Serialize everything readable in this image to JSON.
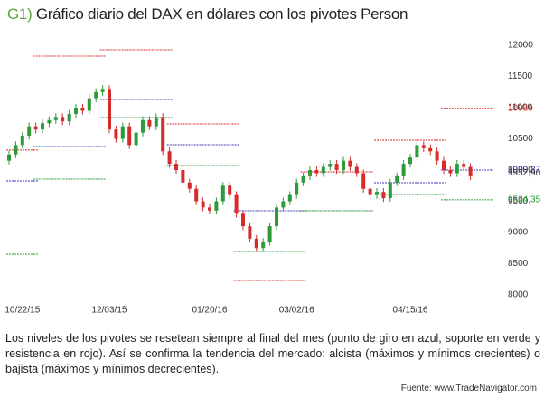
{
  "chart_data": {
    "type": "candlestick",
    "title_prefix": "G1)",
    "title": "Gráfico diario del DAX en dólares con los pivotes Person",
    "categories": [
      null,
      null,
      "10/22/15",
      null,
      null,
      null,
      null,
      null,
      null,
      null,
      null,
      null,
      null,
      null,
      null,
      "12/03/15",
      null,
      null,
      null,
      null,
      null,
      null,
      null,
      null,
      null,
      null,
      null,
      null,
      null,
      null,
      "01/20/16",
      null,
      null,
      null,
      null,
      null,
      null,
      null,
      null,
      null,
      null,
      null,
      null,
      "03/02/16",
      null,
      null,
      null,
      null,
      null,
      null,
      null,
      null,
      null,
      null,
      null,
      null,
      null,
      null,
      null,
      null,
      "04/15/16",
      null,
      null,
      null,
      null,
      null,
      null,
      null,
      null,
      null
    ],
    "open": [
      10150,
      10250,
      10400,
      10550,
      10700,
      10650,
      10750,
      10800,
      10850,
      10780,
      10900,
      11000,
      10950,
      11150,
      11250,
      11300,
      10650,
      10500,
      10700,
      10400,
      10600,
      10800,
      10700,
      10850,
      10300,
      10100,
      10000,
      9800,
      9700,
      9500,
      9400,
      9350,
      9500,
      9750,
      9600,
      9300,
      9100,
      8900,
      8750,
      8850,
      9100,
      9400,
      9500,
      9600,
      9800,
      9900,
      10000,
      9950,
      10050,
      10100,
      10000,
      10150,
      10050,
      9950,
      9700,
      9600,
      9650,
      9550,
      9800,
      9900,
      10100,
      10200,
      10400,
      10350,
      10300,
      10150,
      10000,
      9950,
      10100,
      10050
    ],
    "high": [
      10310,
      10460,
      10610,
      10760,
      10760,
      10810,
      10860,
      10910,
      10910,
      10960,
      11060,
      11060,
      11210,
      11310,
      11360,
      11360,
      10710,
      10760,
      10760,
      10660,
      10860,
      10860,
      10910,
      10910,
      10360,
      10160,
      10060,
      9860,
      9760,
      9560,
      9460,
      9560,
      9810,
      9810,
      9660,
      9360,
      9160,
      8960,
      8910,
      9160,
      9460,
      9560,
      9660,
      9860,
      9960,
      10060,
      10060,
      10110,
      10160,
      10160,
      10210,
      10210,
      10110,
      10010,
      9760,
      9710,
      9710,
      9860,
      9960,
      10160,
      10260,
      10460,
      10460,
      10410,
      10360,
      10210,
      10060,
      10160,
      10160,
      10110
    ],
    "low": [
      10090,
      10190,
      10340,
      10490,
      10590,
      10590,
      10690,
      10740,
      10720,
      10720,
      10840,
      10890,
      10890,
      11090,
      11190,
      10590,
      10440,
      10440,
      10340,
      10340,
      10540,
      10640,
      10640,
      10240,
      10040,
      9940,
      9740,
      9640,
      9440,
      9340,
      9290,
      9290,
      9440,
      9540,
      9240,
      9040,
      8840,
      8690,
      8690,
      8790,
      9040,
      9340,
      9440,
      9540,
      9740,
      9840,
      9890,
      9890,
      9990,
      9940,
      9940,
      9990,
      9890,
      9640,
      9540,
      9540,
      9490,
      9490,
      9740,
      9840,
      10040,
      10140,
      10290,
      10240,
      10090,
      9940,
      9890,
      9890,
      9990,
      9840
    ],
    "close": [
      10250,
      10400,
      10550,
      10700,
      10650,
      10750,
      10800,
      10850,
      10780,
      10900,
      11000,
      10950,
      11150,
      11250,
      11300,
      10650,
      10500,
      10700,
      10400,
      10600,
      10800,
      10700,
      10850,
      10300,
      10100,
      10000,
      9800,
      9700,
      9500,
      9400,
      9350,
      9500,
      9750,
      9600,
      9300,
      9100,
      8900,
      8750,
      8850,
      9100,
      9400,
      9500,
      9600,
      9800,
      9900,
      10000,
      9950,
      10050,
      10100,
      10000,
      10150,
      10050,
      9950,
      9700,
      9600,
      9650,
      9550,
      9800,
      9900,
      10100,
      10200,
      10400,
      10350,
      10300,
      10150,
      10000,
      9950,
      10100,
      10050,
      9900
    ],
    "up_color": "#2e9a3a",
    "down_color": "#d62b2b",
    "pivot_levels": [
      {
        "color": "#d62b2b",
        "segments": [
          {
            "start": 0,
            "end": 4,
            "value": 10320
          },
          {
            "start": 4,
            "end": 14,
            "value": 11826
          },
          {
            "start": 14,
            "end": 24,
            "value": 11928
          },
          {
            "start": 24,
            "end": 34,
            "value": 10739
          },
          {
            "start": 34,
            "end": 44,
            "value": 8232
          },
          {
            "start": 44,
            "end": 54,
            "value": 9971
          },
          {
            "start": 55,
            "end": 65,
            "value": 10478
          },
          {
            "start": 65,
            "end": 69,
            "value": 10989
          }
        ]
      },
      {
        "color": "#3a3ab0",
        "segments": [
          {
            "start": 0,
            "end": 4,
            "value": 9826
          },
          {
            "start": 4,
            "end": 14,
            "value": 10377
          },
          {
            "start": 14,
            "end": 24,
            "value": 11130
          },
          {
            "start": 24,
            "end": 34,
            "value": 10406
          },
          {
            "start": 34,
            "end": 44,
            "value": 9348
          },
          {
            "start": 44,
            "end": 54,
            "value": 9348
          },
          {
            "start": 55,
            "end": 65,
            "value": 9797
          },
          {
            "start": 65,
            "end": 69,
            "value": 9999.37
          }
        ]
      },
      {
        "color": "#2e9a3a",
        "segments": [
          {
            "start": 0,
            "end": 4,
            "value": 8652
          },
          {
            "start": 4,
            "end": 14,
            "value": 9855
          },
          {
            "start": 14,
            "end": 24,
            "value": 10840
          },
          {
            "start": 24,
            "end": 34,
            "value": 10072
          },
          {
            "start": 34,
            "end": 44,
            "value": 8696
          },
          {
            "start": 44,
            "end": 54,
            "value": 9348
          },
          {
            "start": 55,
            "end": 65,
            "value": 9609
          },
          {
            "start": 65,
            "end": 69,
            "value": 9524.35
          }
        ]
      }
    ],
    "annotations": [
      {
        "value": 10989,
        "label": "10989",
        "color": "#d62b2b"
      },
      {
        "value": 9999.37,
        "label": "9999,37",
        "color": "#3a3ab0"
      },
      {
        "value": 9952.9,
        "label": "9952,90",
        "color": "#333333"
      },
      {
        "value": 9524.35,
        "label": "9524,35",
        "color": "#2e9a3a"
      }
    ],
    "ylim": [
      8000,
      12000
    ],
    "yticks": [
      8000,
      8500,
      9000,
      9500,
      10000,
      10500,
      11000,
      11500,
      12000
    ],
    "caption": "Los niveles de los pivotes se resetean siempre al final del mes (punto de giro en azul, soporte en verde y resistencia en rojo). Así se confirma la tendencia del mercado: alcista (máximos y mínimos crecientes) o bajista (máximos y mínimos decrecientes).",
    "source": "Fuente: www.TradeNavigator.com"
  }
}
